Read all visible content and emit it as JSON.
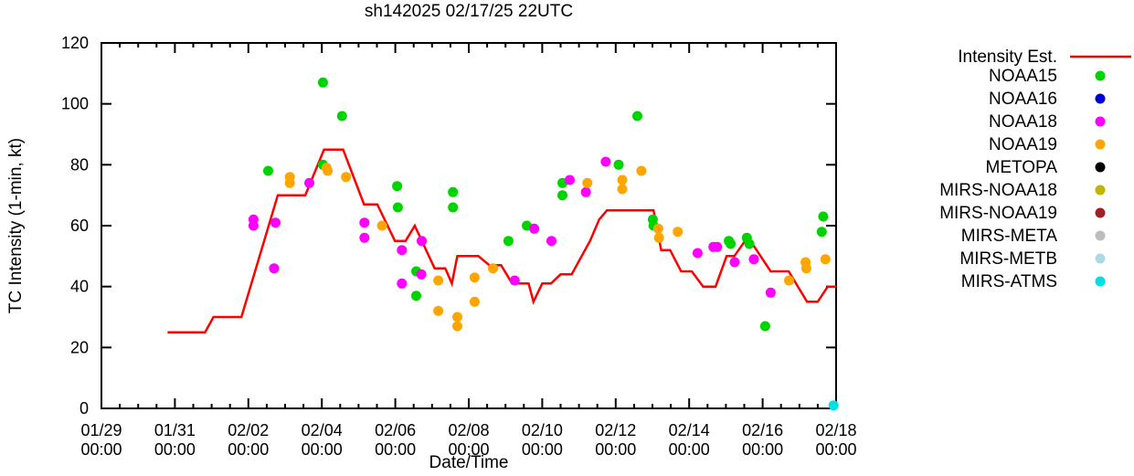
{
  "title": "sh142025 02/17/25 22UTC",
  "chart_data": {
    "type": "line+scatter",
    "title": "sh142025 02/17/25 22UTC",
    "xlabel": "Date/Time",
    "ylabel": "TC Intensity (1-min, kt)",
    "grid": false,
    "legend_position": "right-outside",
    "x_axis": {
      "unit": "days since 01/29 00:00",
      "range": [
        0,
        20
      ],
      "minor_tick_interval_days": 0.5,
      "major_ticks": [
        {
          "day": 0,
          "date": "01/29",
          "time": "00:00"
        },
        {
          "day": 2,
          "date": "01/31",
          "time": "00:00"
        },
        {
          "day": 4,
          "date": "02/02",
          "time": "00:00"
        },
        {
          "day": 6,
          "date": "02/04",
          "time": "00:00"
        },
        {
          "day": 8,
          "date": "02/06",
          "time": "00:00"
        },
        {
          "day": 10,
          "date": "02/08",
          "time": "00:00"
        },
        {
          "day": 12,
          "date": "02/10",
          "time": "00:00"
        },
        {
          "day": 14,
          "date": "02/12",
          "time": "00:00"
        },
        {
          "day": 16,
          "date": "02/14",
          "time": "00:00"
        },
        {
          "day": 18,
          "date": "02/16",
          "time": "00:00"
        },
        {
          "day": 20,
          "date": "02/18",
          "time": "00:00"
        }
      ]
    },
    "y_axis": {
      "range": [
        0,
        120
      ],
      "ticks": [
        0,
        20,
        40,
        60,
        80,
        100,
        120
      ]
    },
    "intensity_line": {
      "name": "Intensity Est.",
      "color": "#ff0000",
      "points": [
        [
          1.8,
          25
        ],
        [
          2.82,
          25
        ],
        [
          3.05,
          30
        ],
        [
          3.81,
          30
        ],
        [
          4.8,
          70
        ],
        [
          5.55,
          70
        ],
        [
          6.06,
          85
        ],
        [
          6.58,
          85
        ],
        [
          7.15,
          67
        ],
        [
          7.51,
          67
        ],
        [
          7.99,
          55
        ],
        [
          8.28,
          55
        ],
        [
          8.53,
          60
        ],
        [
          9.07,
          46
        ],
        [
          9.36,
          46
        ],
        [
          9.54,
          41
        ],
        [
          9.69,
          50
        ],
        [
          10.26,
          50
        ],
        [
          10.56,
          47
        ],
        [
          10.88,
          47
        ],
        [
          11.18,
          41
        ],
        [
          11.63,
          41
        ],
        [
          11.76,
          35
        ],
        [
          12.0,
          41
        ],
        [
          12.24,
          41
        ],
        [
          12.5,
          44
        ],
        [
          12.8,
          44
        ],
        [
          13.3,
          55
        ],
        [
          13.55,
          62
        ],
        [
          13.76,
          65
        ],
        [
          15.03,
          65
        ],
        [
          15.24,
          52
        ],
        [
          15.48,
          52
        ],
        [
          15.78,
          45
        ],
        [
          16.07,
          45
        ],
        [
          16.38,
          40
        ],
        [
          16.72,
          40
        ],
        [
          17.02,
          50
        ],
        [
          17.23,
          50
        ],
        [
          17.52,
          55
        ],
        [
          17.67,
          55
        ],
        [
          18.22,
          45
        ],
        [
          18.71,
          45
        ],
        [
          19.21,
          35
        ],
        [
          19.5,
          35
        ],
        [
          19.77,
          40
        ],
        [
          20.0,
          40
        ]
      ]
    },
    "series": [
      {
        "name": "NOAA15",
        "color": "#00d400",
        "points": [
          [
            4.54,
            78
          ],
          [
            6.03,
            107
          ],
          [
            6.03,
            80
          ],
          [
            6.55,
            96
          ],
          [
            8.05,
            73
          ],
          [
            8.07,
            66
          ],
          [
            8.57,
            45
          ],
          [
            8.57,
            37
          ],
          [
            9.57,
            71
          ],
          [
            9.57,
            66
          ],
          [
            11.08,
            55
          ],
          [
            11.58,
            60
          ],
          [
            12.55,
            74
          ],
          [
            12.55,
            70
          ],
          [
            14.08,
            80
          ],
          [
            14.59,
            96
          ],
          [
            15.01,
            62
          ],
          [
            15.03,
            60
          ],
          [
            17.08,
            55
          ],
          [
            17.13,
            54
          ],
          [
            17.57,
            56
          ],
          [
            17.64,
            54
          ],
          [
            18.07,
            27
          ],
          [
            19.61,
            58
          ],
          [
            19.65,
            63
          ]
        ]
      },
      {
        "name": "NOAA16",
        "color": "#0000d8",
        "points": []
      },
      {
        "name": "NOAA18",
        "color": "#ff00ff",
        "points": [
          [
            4.14,
            62
          ],
          [
            4.14,
            60
          ],
          [
            4.74,
            61
          ],
          [
            4.7,
            46
          ],
          [
            5.66,
            74
          ],
          [
            7.16,
            61
          ],
          [
            7.16,
            56
          ],
          [
            8.18,
            52
          ],
          [
            8.18,
            41
          ],
          [
            8.71,
            44
          ],
          [
            8.72,
            55
          ],
          [
            11.25,
            42
          ],
          [
            11.78,
            59
          ],
          [
            12.25,
            55
          ],
          [
            12.75,
            75
          ],
          [
            13.19,
            71
          ],
          [
            13.73,
            81
          ],
          [
            16.23,
            51
          ],
          [
            16.66,
            53
          ],
          [
            16.76,
            53
          ],
          [
            17.24,
            48
          ],
          [
            17.76,
            49
          ],
          [
            18.22,
            38
          ]
        ]
      },
      {
        "name": "NOAA19",
        "color": "#ffa500",
        "points": [
          [
            5.13,
            76
          ],
          [
            5.13,
            74
          ],
          [
            6.13,
            79
          ],
          [
            6.16,
            78
          ],
          [
            6.66,
            76
          ],
          [
            7.64,
            60
          ],
          [
            9.17,
            42
          ],
          [
            9.17,
            32
          ],
          [
            9.69,
            30
          ],
          [
            9.69,
            27
          ],
          [
            10.16,
            43
          ],
          [
            10.16,
            35
          ],
          [
            10.66,
            46
          ],
          [
            13.23,
            74
          ],
          [
            14.18,
            75
          ],
          [
            14.18,
            72
          ],
          [
            14.7,
            78
          ],
          [
            15.16,
            59
          ],
          [
            15.18,
            56
          ],
          [
            15.69,
            58
          ],
          [
            18.72,
            42
          ],
          [
            19.17,
            48
          ],
          [
            19.19,
            46
          ],
          [
            19.71,
            49
          ]
        ]
      },
      {
        "name": "METOPA",
        "color": "#000000",
        "points": []
      },
      {
        "name": "MIRS-NOAA18",
        "color": "#c0b400",
        "points": []
      },
      {
        "name": "MIRS-NOAA19",
        "color": "#a02028",
        "points": []
      },
      {
        "name": "MIRS-META",
        "color": "#bcbcbc",
        "points": []
      },
      {
        "name": "MIRS-METB",
        "color": "#add8e6",
        "points": []
      },
      {
        "name": "MIRS-ATMS",
        "color": "#00e0e0",
        "points": [
          [
            19.93,
            1
          ]
        ]
      }
    ]
  }
}
